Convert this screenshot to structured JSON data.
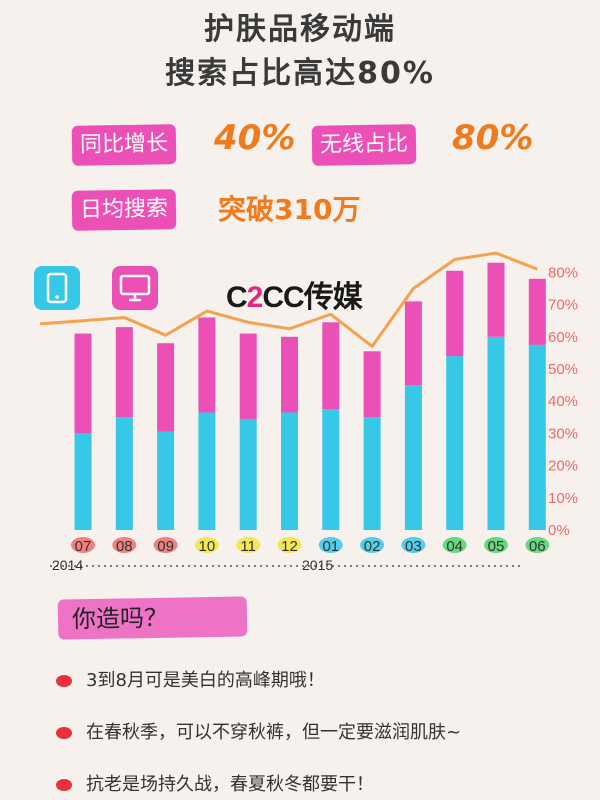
{
  "header": {
    "line1": "护肤品移动端",
    "line2": "搜索占比高达80%"
  },
  "stats": [
    {
      "label": "同比增长",
      "value": "40%"
    },
    {
      "label": "无线占比",
      "value": "80%"
    },
    {
      "label": "日均搜索",
      "value": "突破310万"
    }
  ],
  "icons": {
    "tablet": "tablet-icon",
    "monitor": "monitor-icon"
  },
  "logo": {
    "prefix": "C",
    "two": "2",
    "suffix": "CC传媒"
  },
  "colors": {
    "blue": "#37c8e8",
    "pink": "#ec4fb5",
    "line": "#f3a24e",
    "axis": "#ee6b6b"
  },
  "chart_data": {
    "type": "bar",
    "categories": [
      "07",
      "08",
      "09",
      "10",
      "11",
      "12",
      "01",
      "02",
      "03",
      "04",
      "05",
      "06"
    ],
    "years": [
      "2014",
      "2015"
    ],
    "series": [
      {
        "values": [
          30,
          35,
          30.5,
          36.5,
          34.5,
          36.5,
          37.5,
          35,
          45,
          54,
          60,
          57.5
        ]
      },
      {
        "values": [
          31,
          28,
          27.5,
          29.5,
          26.5,
          23.5,
          27,
          20.5,
          26,
          26.5,
          23,
          20.5
        ]
      }
    ],
    "line": [
      65,
      66,
      60.5,
      68,
      64.5,
      62.5,
      67,
      57,
      75,
      84,
      86,
      81
    ],
    "y_ticks": [
      "0%",
      "10%",
      "20%",
      "30%",
      "40%",
      "50%",
      "60%",
      "70%",
      "80%"
    ],
    "ylim": [
      0,
      90
    ],
    "tick_colors": [
      "#ec6f6f",
      "#ec6f6f",
      "#ec6f6f",
      "#f2e53b",
      "#f2e53b",
      "#f2e53b",
      "#37c8e8",
      "#37c8e8",
      "#37c8e8",
      "#4dd36b",
      "#4dd36b",
      "#4dd36b"
    ]
  },
  "tips": {
    "title": "你造吗？",
    "items": [
      "3到8月可是美白的高峰期哦！",
      "在春秋季，可以不穿秋裤，但一定要滋润肌肤~",
      "抗老是场持久战，春夏秋冬都要干！"
    ]
  }
}
